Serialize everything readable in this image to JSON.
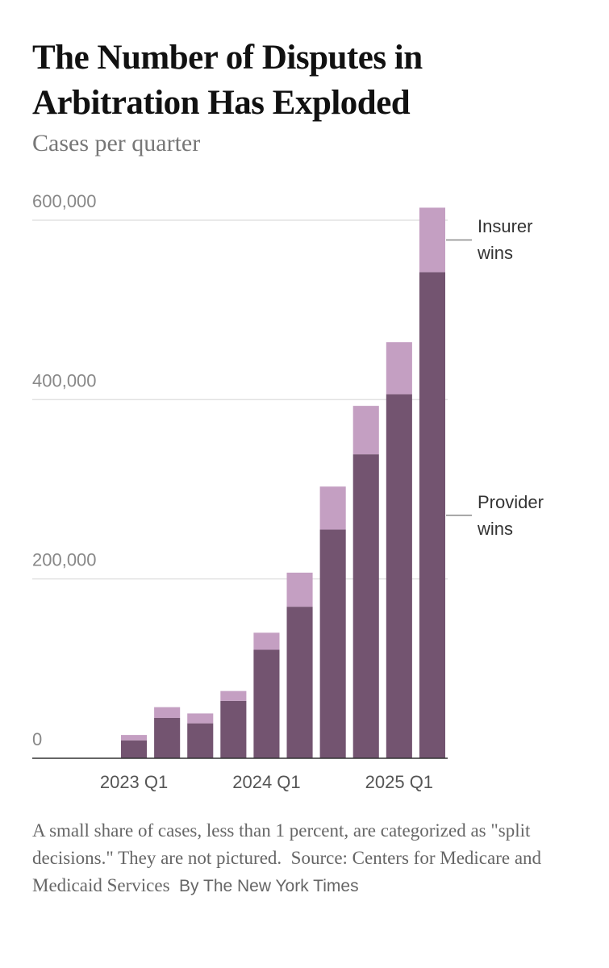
{
  "title": "The Number of Disputes in Arbitration Has Exploded",
  "subtitle": "Cases per quarter",
  "chart_data": {
    "type": "stacked-bar",
    "categories": [
      "2023 Q1",
      null,
      null,
      null,
      "2024 Q1",
      null,
      null,
      null,
      "2025 Q1",
      null
    ],
    "series": [
      {
        "name": "Provider wins",
        "color": "#735470",
        "values": [
          20000,
          45000,
          39000,
          64000,
          121000,
          169000,
          255000,
          339000,
          406000,
          542000
        ]
      },
      {
        "name": "Insurer wins",
        "color": "#c49fc2",
        "values": [
          6000,
          12000,
          11000,
          11000,
          19000,
          38000,
          48000,
          54000,
          58000,
          72000
        ]
      }
    ],
    "ylim": [
      0,
      600000
    ],
    "yticks": [
      0,
      {
        "value": 200000,
        "label": "200,000"
      },
      {
        "value": 400000,
        "label": "400,000"
      },
      {
        "value": 600000,
        "label": "600,000"
      }
    ],
    "grid": true
  },
  "note": "A small share of cases, less than 1 percent, are categorized as \"split decisions.\" They are not pictured.",
  "source": "Source: Centers for Medicare and Medicaid Services",
  "byline": "By The New York Times"
}
